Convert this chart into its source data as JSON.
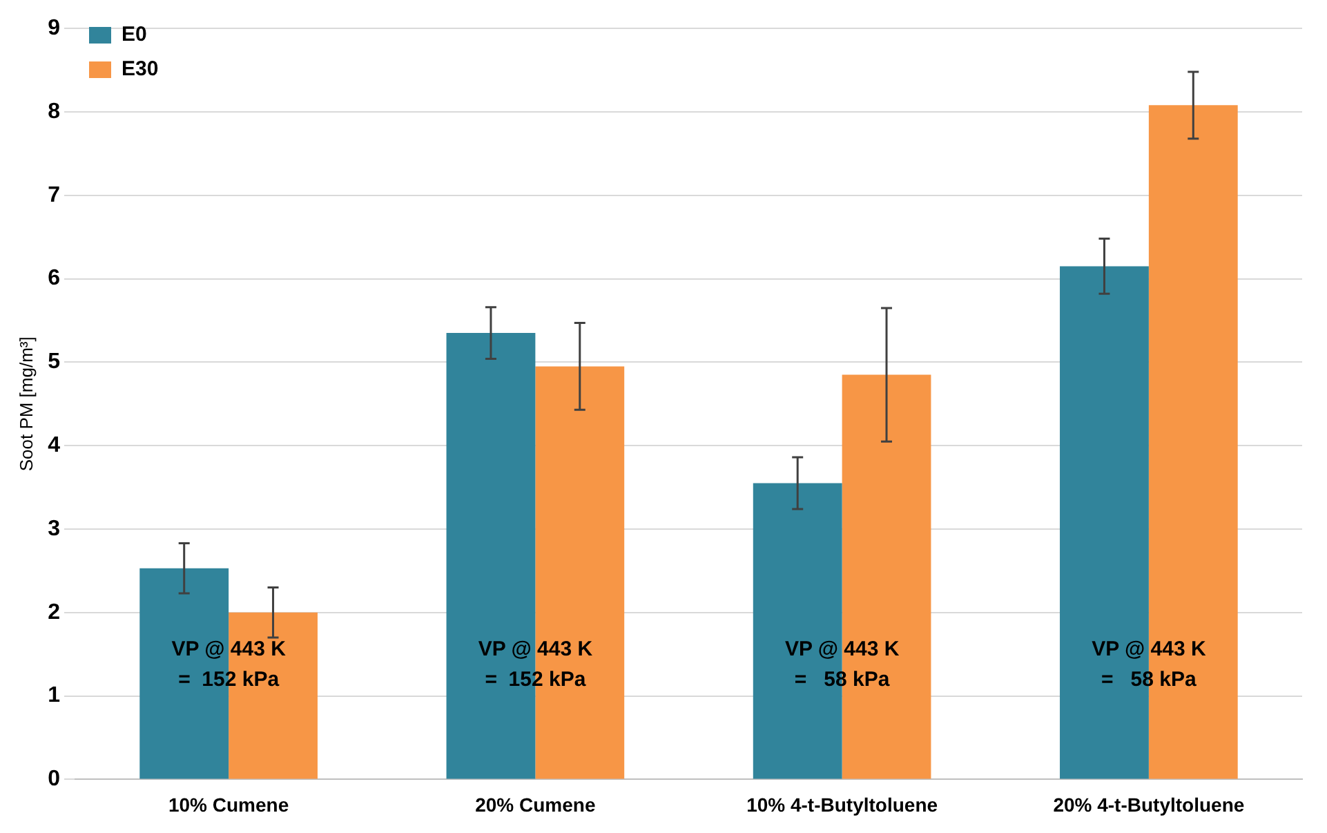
{
  "chart_data": {
    "type": "bar",
    "ylabel": "Soot PM [mg/m³]",
    "categories": [
      "10% Cumene",
      "20% Cumene",
      "10% 4-t-Butyltoluene",
      "20% 4-t-Butyltoluene"
    ],
    "series": [
      {
        "name": "E0",
        "color": "#31849b",
        "values": [
          2.53,
          5.35,
          3.55,
          6.15
        ],
        "errors": [
          0.3,
          0.31,
          0.31,
          0.33
        ]
      },
      {
        "name": "E30",
        "color": "#f79646",
        "values": [
          2.0,
          4.95,
          4.85,
          8.08
        ],
        "errors": [
          0.3,
          0.52,
          0.8,
          0.4
        ]
      }
    ],
    "ylim": [
      0,
      9
    ],
    "yticks": [
      0,
      1,
      2,
      3,
      4,
      5,
      6,
      7,
      8,
      9
    ],
    "grid": "y",
    "legend": "top left",
    "annotations": [
      {
        "text": "VP @ 443 K\n=  152 kPa",
        "x": "10% Cumene",
        "y": 1.3
      },
      {
        "text": "VP @ 443 K\n=  152 kPa",
        "x": "20% Cumene",
        "y": 1.3
      },
      {
        "text": "VP @ 443 K\n=   58 kPa",
        "x": "10% 4-t-Butyltoluene",
        "y": 1.3
      },
      {
        "text": "VP @ 443 K\n=   58 kPa",
        "x": "20% 4-t-Butyltoluene",
        "y": 1.3
      }
    ]
  }
}
